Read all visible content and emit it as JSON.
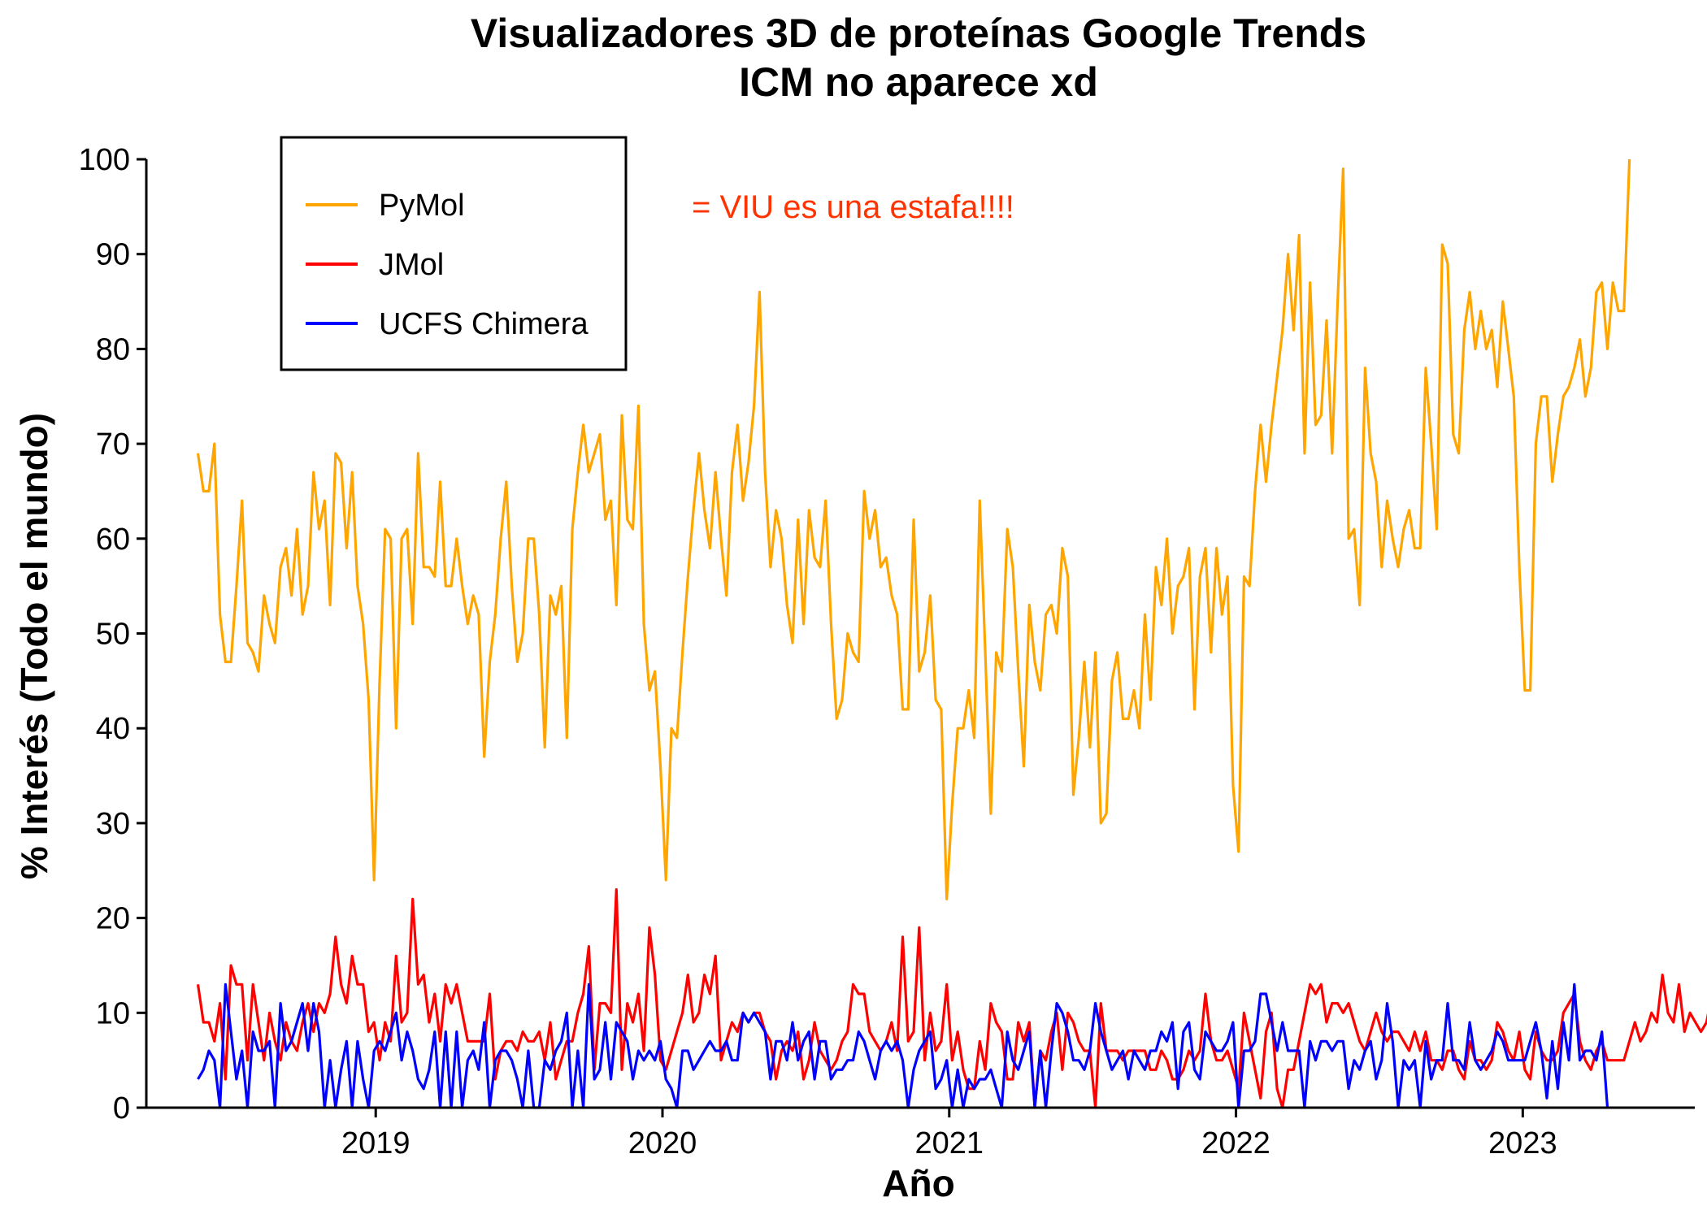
{
  "chart_data": {
    "type": "line",
    "title": "Visualizadores 3D de proteínas Google Trends",
    "subtitle": "ICM no aparece xd",
    "xlabel": "Año",
    "ylabel": "% Interés (Todo el mundo)",
    "xlim": [
      2018.2,
      2023.6
    ],
    "ylim": [
      0,
      100
    ],
    "xticks": [
      2019,
      2020,
      2021,
      2022,
      2023
    ],
    "xtick_labels": [
      "2019",
      "2020",
      "2021",
      "2022",
      "2023"
    ],
    "yticks": [
      0,
      10,
      20,
      30,
      40,
      50,
      60,
      70,
      80,
      90,
      100
    ],
    "ytick_labels": [
      "0",
      "10",
      "20",
      "30",
      "40",
      "50",
      "60",
      "70",
      "80",
      "90",
      "100"
    ],
    "grid": false,
    "legend_position": "top-left",
    "annotation": {
      "text": "= VIU es una estafa!!!!",
      "x": 2020.05,
      "y": 95,
      "color": "#ff3300"
    },
    "x_start": 2018.38,
    "x_step": 0.0192,
    "series": [
      {
        "name": "PyMol",
        "color": "#ffa500",
        "values": [
          69,
          65,
          65,
          70,
          52,
          47,
          47,
          55,
          64,
          49,
          48,
          46,
          54,
          51,
          49,
          57,
          59,
          54,
          61,
          52,
          55,
          67,
          61,
          64,
          53,
          69,
          68,
          59,
          67,
          55,
          51,
          43,
          24,
          45,
          61,
          60,
          40,
          60,
          61,
          51,
          69,
          57,
          57,
          56,
          66,
          55,
          55,
          60,
          55,
          51,
          54,
          52,
          37,
          47,
          52,
          60,
          66,
          55,
          47,
          50,
          60,
          60,
          52,
          38,
          54,
          52,
          55,
          39,
          61,
          67,
          72,
          67,
          69,
          71,
          62,
          64,
          53,
          73,
          62,
          61,
          74,
          51,
          44,
          46,
          36,
          24,
          40,
          39,
          48,
          56,
          63,
          69,
          63,
          59,
          67,
          60,
          54,
          67,
          72,
          64,
          68,
          74,
          86,
          67,
          57,
          63,
          60,
          53,
          49,
          62,
          51,
          63,
          58,
          57,
          64,
          51,
          41,
          43,
          50,
          48,
          47,
          65,
          60,
          63,
          57,
          58,
          54,
          52,
          42,
          42,
          62,
          46,
          48,
          54,
          43,
          42,
          22,
          32,
          40,
          40,
          44,
          39,
          64,
          48,
          31,
          48,
          46,
          61,
          57,
          46,
          36,
          53,
          47,
          44,
          52,
          53,
          50,
          59,
          56,
          33,
          39,
          47,
          38,
          48,
          30,
          31,
          45,
          48,
          41,
          41,
          44,
          40,
          52,
          43,
          57,
          53,
          60,
          50,
          55,
          56,
          59,
          42,
          56,
          59,
          48,
          59,
          52,
          56,
          34,
          27,
          56,
          55,
          65,
          72,
          66,
          72,
          77,
          82,
          90,
          82,
          92,
          69,
          87,
          72,
          73,
          83,
          69,
          85,
          99,
          60,
          61,
          53,
          78,
          69,
          66,
          57,
          64,
          60,
          57,
          61,
          63,
          59,
          59,
          78,
          70,
          61,
          91,
          89,
          71,
          69,
          82,
          86,
          80,
          84,
          80,
          82,
          76,
          85,
          80,
          75,
          57,
          44,
          44,
          70,
          75,
          75,
          66,
          71,
          75,
          76,
          78,
          81,
          75,
          78,
          86,
          87,
          80,
          87,
          84,
          84,
          100
        ]
      },
      {
        "name": "JMol",
        "color": "#ff0000",
        "values": [
          13,
          9,
          9,
          7,
          11,
          3,
          15,
          13,
          13,
          5,
          13,
          9,
          5,
          10,
          7,
          5,
          9,
          7,
          6,
          9,
          11,
          8,
          11,
          10,
          12,
          18,
          13,
          11,
          16,
          13,
          13,
          8,
          9,
          5,
          9,
          7,
          16,
          9,
          10,
          22,
          13,
          14,
          9,
          12,
          7,
          13,
          11,
          13,
          10,
          7,
          7,
          7,
          7,
          12,
          3,
          6,
          7,
          7,
          6,
          8,
          7,
          7,
          8,
          5,
          9,
          3,
          5,
          7,
          7,
          10,
          12,
          17,
          4,
          11,
          11,
          10,
          23,
          4,
          11,
          9,
          12,
          6,
          19,
          14,
          5,
          4,
          6,
          8,
          10,
          14,
          9,
          10,
          14,
          12,
          16,
          5,
          7,
          9,
          8,
          10,
          9,
          10,
          10,
          8,
          7,
          3,
          6,
          7,
          6,
          8,
          3,
          5,
          9,
          6,
          5,
          4,
          5,
          7,
          8,
          13,
          12,
          12,
          8,
          7,
          6,
          7,
          9,
          6,
          18,
          7,
          8,
          19,
          5,
          10,
          6,
          7,
          13,
          5,
          8,
          4,
          2,
          2,
          7,
          4,
          11,
          9,
          8,
          3,
          3,
          9,
          7,
          9,
          0,
          6,
          5,
          8,
          10,
          4,
          10,
          9,
          7,
          6,
          6,
          0,
          11,
          6,
          6,
          6,
          5,
          6,
          6,
          6,
          6,
          4,
          4,
          6,
          5,
          3,
          3,
          4,
          6,
          5,
          6,
          12,
          7,
          5,
          5,
          6,
          4,
          2,
          10,
          7,
          4,
          1,
          8,
          10,
          2,
          0,
          4,
          4,
          7,
          10,
          13,
          12,
          13,
          9,
          11,
          11,
          10,
          11,
          9,
          7,
          6,
          8,
          10,
          8,
          7,
          8,
          8,
          7,
          6,
          8,
          6,
          8,
          5,
          5,
          4,
          6,
          6,
          4,
          3,
          7,
          5,
          5,
          4,
          5,
          9,
          8,
          6,
          5,
          8,
          4,
          3,
          8,
          6,
          5,
          5,
          6,
          10,
          11,
          12,
          7,
          5,
          4,
          6,
          7,
          5,
          5,
          5,
          5,
          7,
          9,
          7,
          8,
          10,
          9,
          14,
          10,
          9,
          13,
          8,
          10,
          9,
          8,
          9,
          12
        ]
      },
      {
        "name": "UCFS Chimera",
        "color": "#0000ff",
        "values": [
          3,
          4,
          6,
          5,
          0,
          13,
          8,
          3,
          6,
          0,
          8,
          6,
          6,
          7,
          0,
          11,
          6,
          7,
          9,
          11,
          6,
          11,
          8,
          0,
          5,
          0,
          4,
          7,
          0,
          7,
          3,
          0,
          6,
          7,
          6,
          8,
          10,
          5,
          8,
          6,
          3,
          2,
          4,
          8,
          0,
          8,
          0,
          8,
          0,
          5,
          6,
          4,
          9,
          0,
          5,
          6,
          6,
          5,
          3,
          0,
          6,
          0,
          0,
          5,
          4,
          6,
          7,
          10,
          0,
          6,
          0,
          13,
          3,
          4,
          9,
          3,
          9,
          8,
          7,
          3,
          6,
          5,
          6,
          5,
          7,
          3,
          2,
          0,
          6,
          6,
          4,
          5,
          6,
          7,
          6,
          6,
          7,
          5,
          5,
          10,
          9,
          10,
          9,
          8,
          3,
          7,
          7,
          5,
          9,
          5,
          7,
          8,
          3,
          7,
          7,
          3,
          4,
          4,
          5,
          5,
          8,
          7,
          5,
          3,
          6,
          7,
          6,
          7,
          5,
          0,
          4,
          6,
          7,
          8,
          2,
          3,
          5,
          0,
          4,
          0,
          3,
          2,
          3,
          3,
          4,
          2,
          0,
          8,
          5,
          4,
          6,
          8,
          0,
          6,
          0,
          6,
          11,
          10,
          8,
          5,
          5,
          4,
          6,
          11,
          8,
          6,
          4,
          5,
          6,
          3,
          6,
          5,
          4,
          6,
          6,
          8,
          7,
          9,
          2,
          8,
          9,
          4,
          3,
          8,
          7,
          6,
          6,
          7,
          9,
          0,
          6,
          6,
          7,
          12,
          12,
          9,
          6,
          9,
          6,
          6,
          6,
          0,
          7,
          5,
          7,
          7,
          6,
          7,
          7,
          2,
          5,
          4,
          6,
          7,
          3,
          5,
          11,
          7,
          0,
          5,
          4,
          5,
          0,
          7,
          3,
          5,
          5,
          11,
          5,
          5,
          4,
          9,
          5,
          4,
          5,
          6,
          8,
          7,
          5,
          5,
          5,
          5,
          7,
          9,
          6,
          1,
          7,
          2,
          9,
          5,
          13,
          5,
          6,
          6,
          5,
          8,
          0
        ]
      }
    ]
  }
}
